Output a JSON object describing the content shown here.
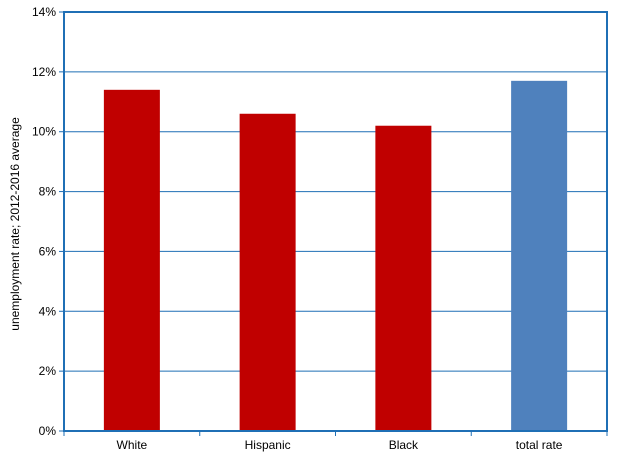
{
  "chart_data": {
    "type": "bar",
    "categories": [
      "White",
      "Hispanic",
      "Black",
      "total rate"
    ],
    "values": [
      11.4,
      10.6,
      10.2,
      11.7
    ],
    "bar_colors": [
      "#c00000",
      "#c00000",
      "#c00000",
      "#4f81bd"
    ],
    "ylabel": "unemployment rate; 2012-2016 average",
    "ylim": [
      0,
      14
    ],
    "yticks": [
      0,
      2,
      4,
      6,
      8,
      10,
      12,
      14
    ],
    "ytick_labels": [
      "0%",
      "2%",
      "4%",
      "6%",
      "8%",
      "10%",
      "12%",
      "14%"
    ],
    "grid": true,
    "axis_color": "#1f6fb5",
    "grid_color": "#1f6fb5",
    "legend": "none"
  }
}
